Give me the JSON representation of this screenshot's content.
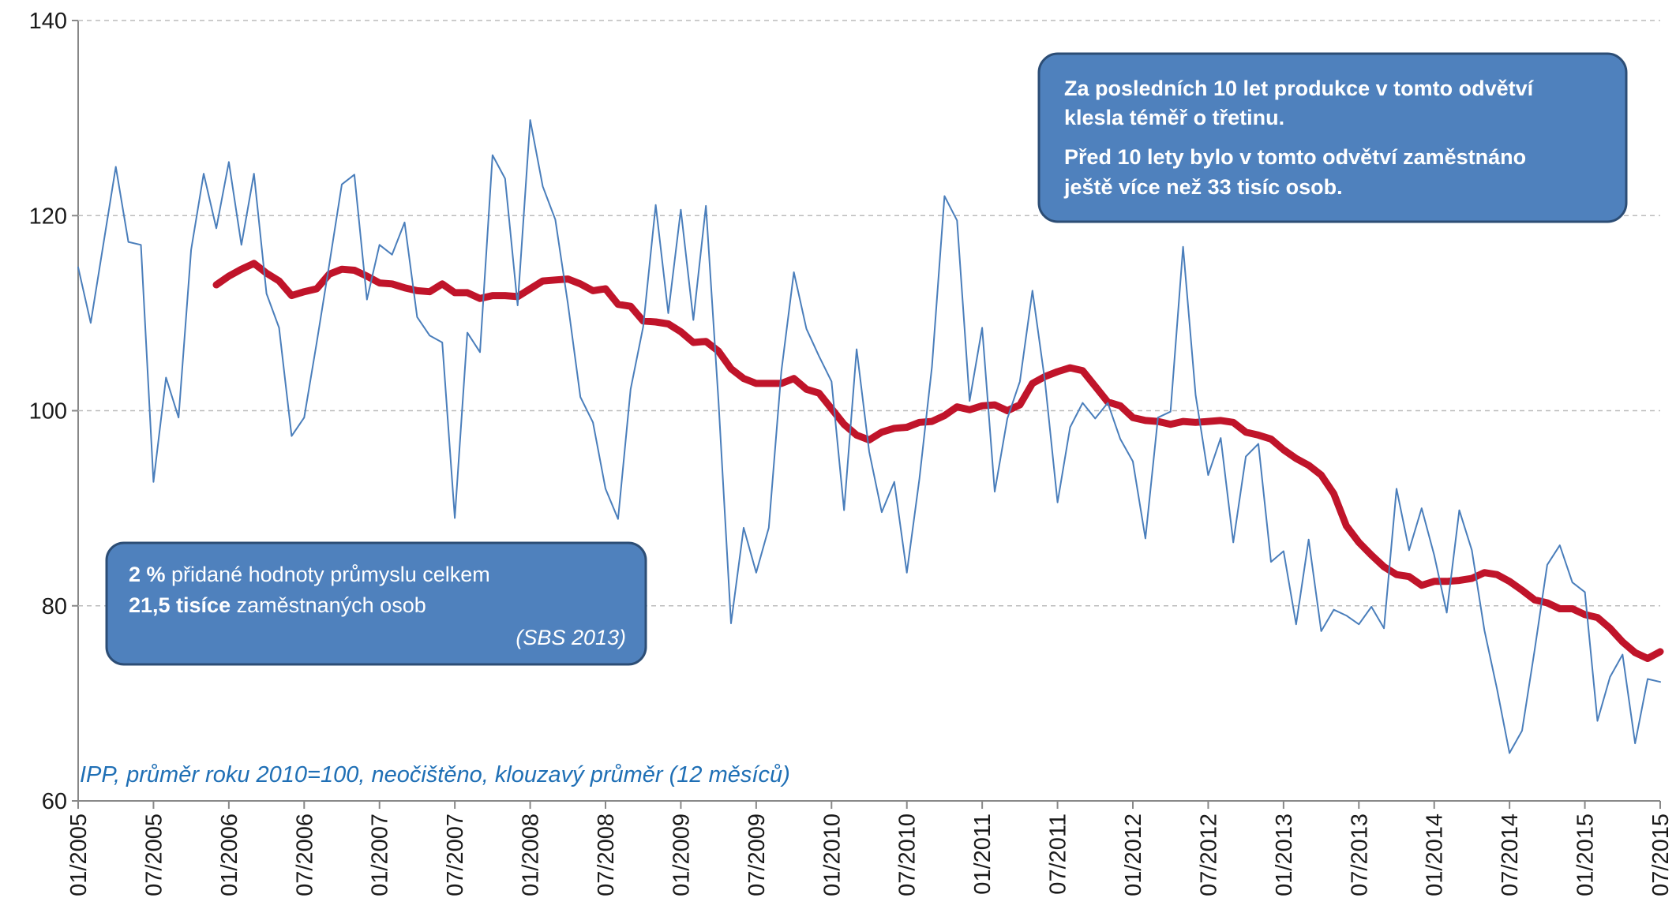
{
  "chart_data": {
    "type": "line",
    "note": "IPP, průměr roku 2010=100, neočištěno, klouzavý průměr (12 měsíců)",
    "annotations": {
      "top": [
        "Za posledních 10 let produkce v tomto odvětví",
        "klesla téměř o třetinu.",
        "Před 10 lety bylo v tomto odvětví zaměstnáno",
        "ještě více než 33 tisíc osob."
      ],
      "bottom": {
        "line1_bold": "2 %",
        "line1": " přidané hodnoty průmyslu celkem",
        "line2_bold": "21,5 tisíce",
        "line2": " zaměstnaných osob",
        "source": "(SBS 2013)"
      }
    },
    "categories": [
      "01/2005",
      null,
      null,
      null,
      null,
      null,
      "07/2005",
      null,
      null,
      null,
      null,
      null,
      "01/2006",
      null,
      null,
      null,
      null,
      null,
      "07/2006",
      null,
      null,
      null,
      null,
      null,
      "01/2007",
      null,
      null,
      null,
      null,
      null,
      "07/2007",
      null,
      null,
      null,
      null,
      null,
      "01/2008",
      null,
      null,
      null,
      null,
      null,
      "07/2008",
      null,
      null,
      null,
      null,
      null,
      "01/2009",
      null,
      null,
      null,
      null,
      null,
      "07/2009",
      null,
      null,
      null,
      null,
      null,
      "01/2010",
      null,
      null,
      null,
      null,
      null,
      "07/2010",
      null,
      null,
      null,
      null,
      null,
      "01/2011",
      null,
      null,
      null,
      null,
      null,
      "07/2011",
      null,
      null,
      null,
      null,
      null,
      "01/2012",
      null,
      null,
      null,
      null,
      null,
      "07/2012",
      null,
      null,
      null,
      null,
      null,
      "01/2013",
      null,
      null,
      null,
      null,
      null,
      "07/2013",
      null,
      null,
      null,
      null,
      null,
      "01/2014",
      null,
      null,
      null,
      null,
      null,
      "07/2014",
      null,
      null,
      null,
      null,
      null,
      "01/2015",
      null,
      null,
      null,
      null,
      null,
      "07/2015"
    ],
    "series": [
      {
        "color": "#4a7ebb",
        "width": 2,
        "values": [
          114.7,
          109,
          117,
          125,
          117.3,
          117,
          92.7,
          103.4,
          99.3,
          116.5,
          124.3,
          118.7,
          125.5,
          117,
          124.3,
          112,
          108.5,
          97.4,
          99.3,
          107,
          115,
          123.2,
          124.2,
          111.4,
          117,
          116,
          119.3,
          109.6,
          107.7,
          107,
          89,
          108,
          106,
          126.2,
          123.8,
          110.8,
          129.8,
          123,
          119.6,
          111,
          101.4,
          98.8,
          92,
          88.9,
          102.2,
          108.6,
          121.1,
          110,
          120.6,
          109.3,
          121,
          101,
          78.2,
          88,
          83.4,
          88,
          104,
          114.2,
          108.4,
          105.6,
          103,
          89.8,
          106.3,
          95.8,
          89.6,
          92.7,
          83.4,
          93,
          104.5,
          122,
          119.5,
          101,
          108.5,
          91.7,
          99.2,
          103,
          112.3,
          103,
          90.6,
          98.3,
          100.8,
          99.2,
          100.8,
          97.1,
          94.8,
          86.9,
          99.3,
          99.9,
          116.8,
          101.6,
          93.4,
          97.2,
          86.5,
          95.3,
          96.6,
          84.5,
          85.6,
          78.1,
          86.8,
          77.4,
          79.6,
          79,
          78.1,
          79.9,
          77.7,
          92,
          85.7,
          90,
          85.2,
          79.3,
          89.8,
          85.7,
          77.5,
          71.5,
          64.9,
          67.2,
          75.5,
          84.2,
          86.2,
          82.4,
          81.4,
          68.2,
          72.7,
          75,
          65.9,
          72.5,
          72.2
        ]
      },
      {
        "color": "#c0142a",
        "width": 9,
        "values": [
          null,
          null,
          null,
          null,
          null,
          null,
          null,
          null,
          null,
          null,
          null,
          112.9,
          113.8,
          114.5,
          115.1,
          114.1,
          113.3,
          111.8,
          112.2,
          112.5,
          114,
          114.5,
          114.4,
          113.8,
          113.1,
          113,
          112.6,
          112.3,
          112.2,
          113,
          112.1,
          112.1,
          111.5,
          111.8,
          111.8,
          111.7,
          112.5,
          113.3,
          113.4,
          113.5,
          113,
          112.3,
          112.5,
          110.9,
          110.7,
          109.2,
          109.1,
          108.9,
          108.1,
          107,
          107.1,
          106.1,
          104.3,
          103.3,
          102.8,
          102.8,
          102.8,
          103.3,
          102.2,
          101.8,
          100.2,
          98.6,
          97.5,
          97,
          97.8,
          98.2,
          98.3,
          98.8,
          98.9,
          99.5,
          100.4,
          100.1,
          100.5,
          100.6,
          100,
          100.6,
          102.8,
          103.5,
          104,
          104.4,
          104.1,
          102.5,
          100.9,
          100.5,
          99.3,
          99,
          98.9,
          98.6,
          98.9,
          98.8,
          98.9,
          99,
          98.8,
          97.8,
          97.5,
          97.1,
          96,
          95.1,
          94.4,
          93.4,
          91.5,
          88.2,
          86.5,
          85.2,
          84,
          83.2,
          83,
          82.1,
          82.5,
          82.5,
          82.6,
          82.8,
          83.4,
          83.2,
          82.5,
          81.6,
          80.6,
          80.3,
          79.7,
          79.7,
          79.1,
          78.8,
          77.7,
          76.3,
          75.2,
          74.6,
          75.3
        ]
      }
    ],
    "ylim": [
      60,
      140
    ],
    "yticks": [
      60,
      80,
      100,
      120,
      140
    ],
    "grid": true
  }
}
